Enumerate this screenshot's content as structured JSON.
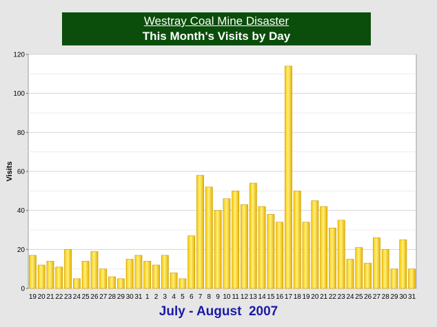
{
  "title": {
    "line1": "Westray Coal Mine Disaster",
    "line2": "This Month's Visits by Day"
  },
  "chart_data": {
    "type": "bar",
    "title": "Westray Coal Mine Disaster — This Month's Visits by Day",
    "xlabel": "July - August  2007",
    "ylabel": "Visits",
    "ylim": [
      0,
      120
    ],
    "yticks": [
      0,
      20,
      40,
      60,
      80,
      100,
      120
    ],
    "grid": true,
    "legend": "none",
    "bar_color": "#f2c200",
    "categories": [
      "19",
      "20",
      "21",
      "22",
      "23",
      "24",
      "25",
      "26",
      "27",
      "28",
      "29",
      "30",
      "31",
      "1",
      "2",
      "3",
      "4",
      "5",
      "6",
      "7",
      "8",
      "9",
      "10",
      "11",
      "12",
      "13",
      "14",
      "15",
      "16",
      "17",
      "18",
      "19",
      "20",
      "21",
      "22",
      "23",
      "24",
      "25",
      "26",
      "27",
      "28",
      "29",
      "30",
      "31"
    ],
    "values": [
      17,
      12,
      14,
      11,
      20,
      5,
      14,
      19,
      10,
      6,
      5,
      15,
      17,
      14,
      12,
      17,
      8,
      5,
      27,
      58,
      52,
      40,
      46,
      50,
      43,
      54,
      42,
      38,
      34,
      114,
      50,
      34,
      45,
      42,
      31,
      35,
      15,
      21,
      13,
      26,
      20,
      10,
      25,
      10
    ]
  }
}
